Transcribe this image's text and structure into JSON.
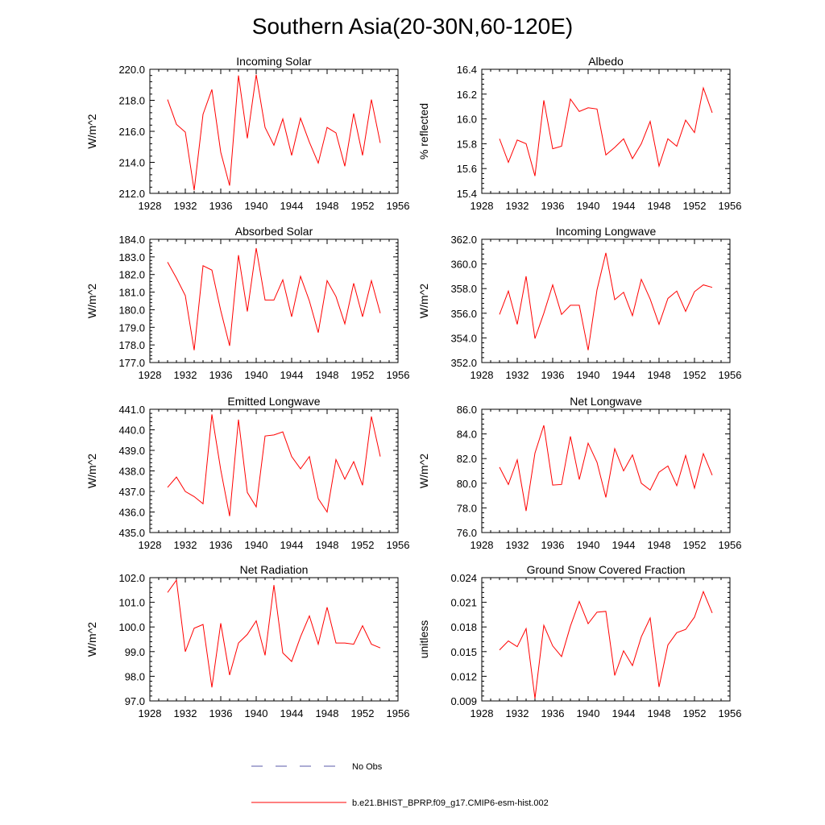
{
  "figure_title": "Southern Asia(20-30N,60-120E)",
  "chart_data": [
    {
      "type": "line",
      "title": "Incoming Solar",
      "xlabel": "",
      "ylabel": "W/m^2",
      "xlim": [
        1928,
        1956
      ],
      "xticks": [
        "1928",
        "1932",
        "1936",
        "1940",
        "1944",
        "1948",
        "1952",
        "1956"
      ],
      "ylim": [
        212.0,
        220.0
      ],
      "yticks": [
        "212.0",
        "214.0",
        "216.0",
        "218.0",
        "220.0"
      ],
      "x": [
        1930,
        1931,
        1932,
        1933,
        1934,
        1935,
        1936,
        1937,
        1938,
        1939,
        1940,
        1941,
        1942,
        1943,
        1944,
        1945,
        1946,
        1947,
        1948,
        1949,
        1950,
        1951,
        1952,
        1953,
        1954
      ],
      "series": [
        {
          "name": "b.e21.BHIST_BPRP.f09_g17.CMIP6-esm-hist.002",
          "color": "#ff0000",
          "values": [
            218.05,
            216.45,
            215.95,
            212.2,
            217.1,
            218.7,
            214.65,
            212.5,
            219.6,
            215.55,
            219.65,
            216.25,
            215.1,
            216.8,
            214.45,
            216.85,
            215.3,
            213.95,
            216.25,
            215.9,
            213.75,
            217.15,
            214.45,
            218.05,
            215.25
          ]
        }
      ]
    },
    {
      "type": "line",
      "title": "Albedo",
      "xlabel": "",
      "ylabel": "% reflected",
      "xlim": [
        1928,
        1956
      ],
      "xticks": [
        "1928",
        "1932",
        "1936",
        "1940",
        "1944",
        "1948",
        "1952",
        "1956"
      ],
      "ylim": [
        15.4,
        16.4
      ],
      "yticks": [
        "15.4",
        "15.6",
        "15.8",
        "16.0",
        "16.2",
        "16.4"
      ],
      "x": [
        1930,
        1931,
        1932,
        1933,
        1934,
        1935,
        1936,
        1937,
        1938,
        1939,
        1940,
        1941,
        1942,
        1943,
        1944,
        1945,
        1946,
        1947,
        1948,
        1949,
        1950,
        1951,
        1952,
        1953,
        1954
      ],
      "series": [
        {
          "name": "b.e21.BHIST_BPRP.f09_g17.CMIP6-esm-hist.002",
          "color": "#ff0000",
          "values": [
            15.84,
            15.65,
            15.83,
            15.8,
            15.54,
            16.15,
            15.76,
            15.78,
            16.16,
            16.06,
            16.09,
            16.08,
            15.71,
            15.77,
            15.84,
            15.68,
            15.8,
            15.98,
            15.62,
            15.84,
            15.78,
            15.99,
            15.89,
            16.25,
            16.05
          ]
        }
      ]
    },
    {
      "type": "line",
      "title": "Absorbed Solar",
      "xlabel": "",
      "ylabel": "W/m^2",
      "xlim": [
        1928,
        1956
      ],
      "xticks": [
        "1928",
        "1932",
        "1936",
        "1940",
        "1944",
        "1948",
        "1952",
        "1956"
      ],
      "ylim": [
        177.0,
        184.0
      ],
      "yticks": [
        "177.0",
        "178.0",
        "179.0",
        "180.0",
        "181.0",
        "182.0",
        "183.0",
        "184.0"
      ],
      "x": [
        1930,
        1931,
        1932,
        1933,
        1934,
        1935,
        1936,
        1937,
        1938,
        1939,
        1940,
        1941,
        1942,
        1943,
        1944,
        1945,
        1946,
        1947,
        1948,
        1949,
        1950,
        1951,
        1952,
        1953,
        1954
      ],
      "series": [
        {
          "name": "b.e21.BHIST_BPRP.f09_g17.CMIP6-esm-hist.002",
          "color": "#ff0000",
          "values": [
            182.7,
            181.8,
            180.8,
            177.7,
            182.5,
            182.25,
            179.95,
            177.95,
            183.1,
            179.9,
            183.5,
            180.55,
            180.55,
            181.7,
            179.6,
            181.9,
            180.5,
            178.7,
            181.65,
            180.75,
            179.2,
            181.5,
            179.6,
            181.65,
            179.8
          ]
        }
      ]
    },
    {
      "type": "line",
      "title": "Incoming Longwave",
      "xlabel": "",
      "ylabel": "W/m^2",
      "xlim": [
        1928,
        1956
      ],
      "xticks": [
        "1928",
        "1932",
        "1936",
        "1940",
        "1944",
        "1948",
        "1952",
        "1956"
      ],
      "ylim": [
        352.0,
        362.0
      ],
      "yticks": [
        "352.0",
        "354.0",
        "356.0",
        "358.0",
        "360.0",
        "362.0"
      ],
      "x": [
        1930,
        1931,
        1932,
        1933,
        1934,
        1935,
        1936,
        1937,
        1938,
        1939,
        1940,
        1941,
        1942,
        1943,
        1944,
        1945,
        1946,
        1947,
        1948,
        1949,
        1950,
        1951,
        1952,
        1953,
        1954
      ],
      "series": [
        {
          "name": "b.e21.BHIST_BPRP.f09_g17.CMIP6-esm-hist.002",
          "color": "#ff0000",
          "values": [
            355.9,
            357.8,
            355.1,
            359.0,
            353.95,
            356.0,
            358.3,
            355.9,
            356.65,
            356.65,
            353.0,
            357.9,
            360.9,
            357.1,
            357.7,
            355.8,
            358.75,
            357.15,
            355.1,
            357.2,
            357.8,
            356.15,
            357.75,
            358.3,
            358.1
          ]
        }
      ]
    },
    {
      "type": "line",
      "title": "Emitted Longwave",
      "xlabel": "",
      "ylabel": "W/m^2",
      "xlim": [
        1928,
        1956
      ],
      "xticks": [
        "1928",
        "1932",
        "1936",
        "1940",
        "1944",
        "1948",
        "1952",
        "1956"
      ],
      "ylim": [
        435.0,
        441.0
      ],
      "yticks": [
        "435.0",
        "436.0",
        "437.0",
        "438.0",
        "439.0",
        "440.0",
        "441.0"
      ],
      "x": [
        1930,
        1931,
        1932,
        1933,
        1934,
        1935,
        1936,
        1937,
        1938,
        1939,
        1940,
        1941,
        1942,
        1943,
        1944,
        1945,
        1946,
        1947,
        1948,
        1949,
        1950,
        1951,
        1952,
        1953,
        1954
      ],
      "series": [
        {
          "name": "b.e21.BHIST_BPRP.f09_g17.CMIP6-esm-hist.002",
          "color": "#ff0000",
          "values": [
            437.2,
            437.7,
            437.0,
            436.75,
            436.4,
            440.75,
            438.05,
            435.8,
            440.5,
            436.95,
            436.25,
            439.7,
            439.75,
            439.9,
            438.7,
            438.1,
            438.7,
            436.65,
            436.0,
            438.55,
            437.6,
            438.45,
            437.3,
            440.65,
            438.7
          ]
        }
      ]
    },
    {
      "type": "line",
      "title": "Net Longwave",
      "xlabel": "",
      "ylabel": "W/m^2",
      "xlim": [
        1928,
        1956
      ],
      "xticks": [
        "1928",
        "1932",
        "1936",
        "1940",
        "1944",
        "1948",
        "1952",
        "1956"
      ],
      "ylim": [
        76.0,
        86.0
      ],
      "yticks": [
        "76.0",
        "78.0",
        "80.0",
        "82.0",
        "84.0",
        "86.0"
      ],
      "x": [
        1930,
        1931,
        1932,
        1933,
        1934,
        1935,
        1936,
        1937,
        1938,
        1939,
        1940,
        1941,
        1942,
        1943,
        1944,
        1945,
        1946,
        1947,
        1948,
        1949,
        1950,
        1951,
        1952,
        1953,
        1954
      ],
      "series": [
        {
          "name": "b.e21.BHIST_BPRP.f09_g17.CMIP6-esm-hist.002",
          "color": "#ff0000",
          "values": [
            81.3,
            79.9,
            81.9,
            77.75,
            82.45,
            84.7,
            79.85,
            79.9,
            83.8,
            80.3,
            83.25,
            81.7,
            78.85,
            82.8,
            81.0,
            82.3,
            80.0,
            79.45,
            80.9,
            81.4,
            79.8,
            82.25,
            79.6,
            82.4,
            80.65
          ]
        }
      ]
    },
    {
      "type": "line",
      "title": "Net Radiation",
      "xlabel": "",
      "ylabel": "W/m^2",
      "xlim": [
        1928,
        1956
      ],
      "xticks": [
        "1928",
        "1932",
        "1936",
        "1940",
        "1944",
        "1948",
        "1952",
        "1956"
      ],
      "ylim": [
        97.0,
        102.0
      ],
      "yticks": [
        "97.0",
        "98.0",
        "99.0",
        "100.0",
        "101.0",
        "102.0"
      ],
      "x": [
        1930,
        1931,
        1932,
        1933,
        1934,
        1935,
        1936,
        1937,
        1938,
        1939,
        1940,
        1941,
        1942,
        1943,
        1944,
        1945,
        1946,
        1947,
        1948,
        1949,
        1950,
        1951,
        1952,
        1953,
        1954
      ],
      "series": [
        {
          "name": "b.e21.BHIST_BPRP.f09_g17.CMIP6-esm-hist.002",
          "color": "#ff0000",
          "values": [
            101.4,
            101.9,
            99.0,
            99.95,
            100.1,
            97.55,
            100.15,
            98.05,
            99.35,
            99.7,
            100.25,
            98.85,
            101.7,
            98.95,
            98.6,
            99.6,
            100.45,
            99.3,
            100.8,
            99.35,
            99.35,
            99.3,
            100.05,
            99.3,
            99.15
          ]
        }
      ]
    },
    {
      "type": "line",
      "title": "Ground Snow Covered Fraction",
      "xlabel": "",
      "ylabel": "unitless",
      "xlim": [
        1928,
        1956
      ],
      "xticks": [
        "1928",
        "1932",
        "1936",
        "1940",
        "1944",
        "1948",
        "1952",
        "1956"
      ],
      "ylim": [
        0.009,
        0.024
      ],
      "yticks": [
        "0.009",
        "0.012",
        "0.015",
        "0.018",
        "0.021",
        "0.024"
      ],
      "x": [
        1930,
        1931,
        1932,
        1933,
        1934,
        1935,
        1936,
        1937,
        1938,
        1939,
        1940,
        1941,
        1942,
        1943,
        1944,
        1945,
        1946,
        1947,
        1948,
        1949,
        1950,
        1951,
        1952,
        1953,
        1954
      ],
      "series": [
        {
          "name": "b.e21.BHIST_BPRP.f09_g17.CMIP6-esm-hist.002",
          "color": "#ff0000",
          "values": [
            0.0152,
            0.0163,
            0.0156,
            0.0178,
            0.0093,
            0.0182,
            0.0157,
            0.0144,
            0.0181,
            0.0211,
            0.0184,
            0.0198,
            0.0199,
            0.0121,
            0.0151,
            0.0133,
            0.0168,
            0.0191,
            0.0107,
            0.0158,
            0.0173,
            0.0177,
            0.0192,
            0.0223,
            0.0197
          ]
        }
      ]
    }
  ],
  "legend": {
    "placement": "bottom-center",
    "items": [
      {
        "label": "No Obs",
        "color": "#5a5aa8",
        "style": "dashed"
      },
      {
        "label": "b.e21.BHIST_BPRP.f09_g17.CMIP6-esm-hist.002",
        "color": "#ff0000",
        "style": "solid"
      }
    ]
  }
}
